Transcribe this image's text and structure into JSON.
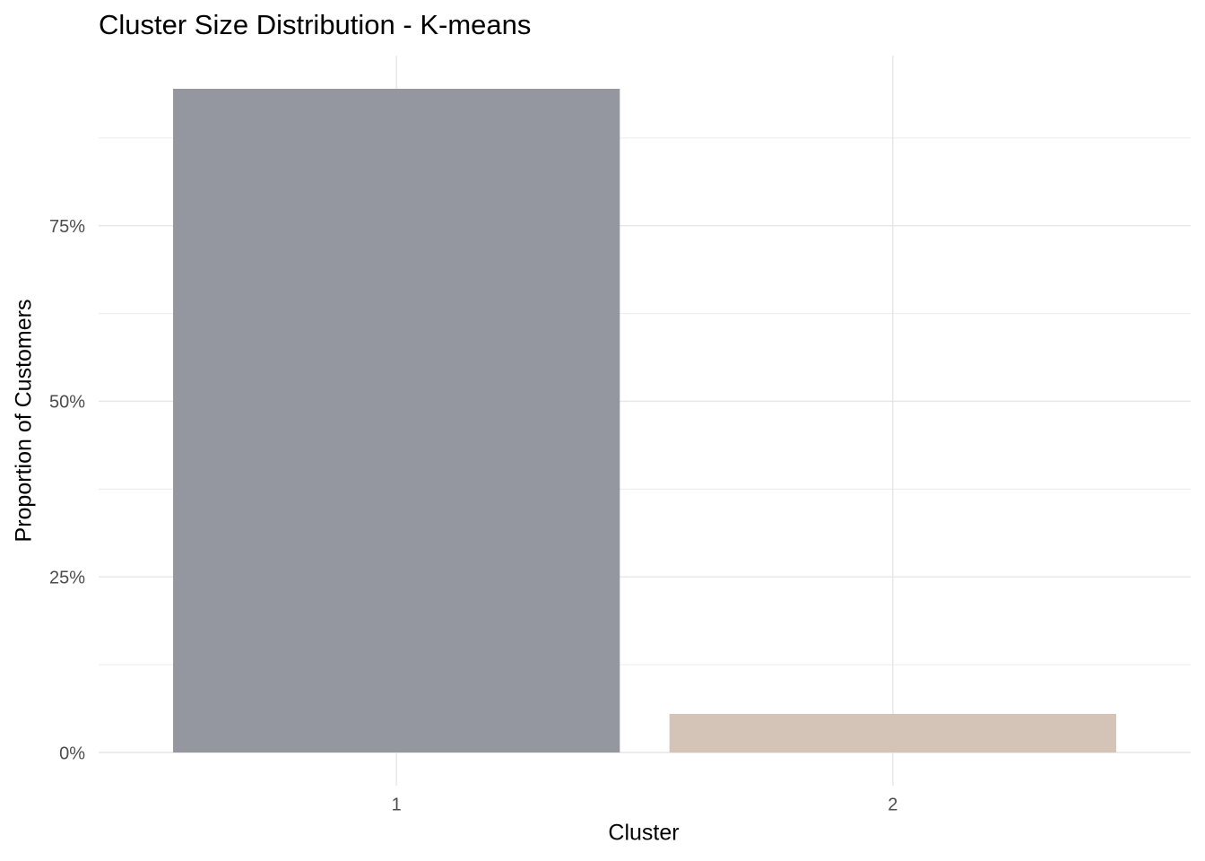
{
  "chart_data": {
    "type": "bar",
    "title": "Cluster Size Distribution - K-means",
    "x_label": "Cluster",
    "y_label": "Proportion of Customers",
    "categories": [
      "1",
      "2"
    ],
    "values": [
      94.5,
      5.5
    ],
    "colors": [
      "#94979f",
      "#d3c4b7"
    ],
    "ylim": [
      -4.725,
      99.225
    ],
    "yticks": [
      {
        "value": 0,
        "label": "0%"
      },
      {
        "value": 25,
        "label": "25%"
      },
      {
        "value": 50,
        "label": "50%"
      },
      {
        "value": 75,
        "label": "75%"
      }
    ],
    "grid": true,
    "minor_grid": true
  }
}
